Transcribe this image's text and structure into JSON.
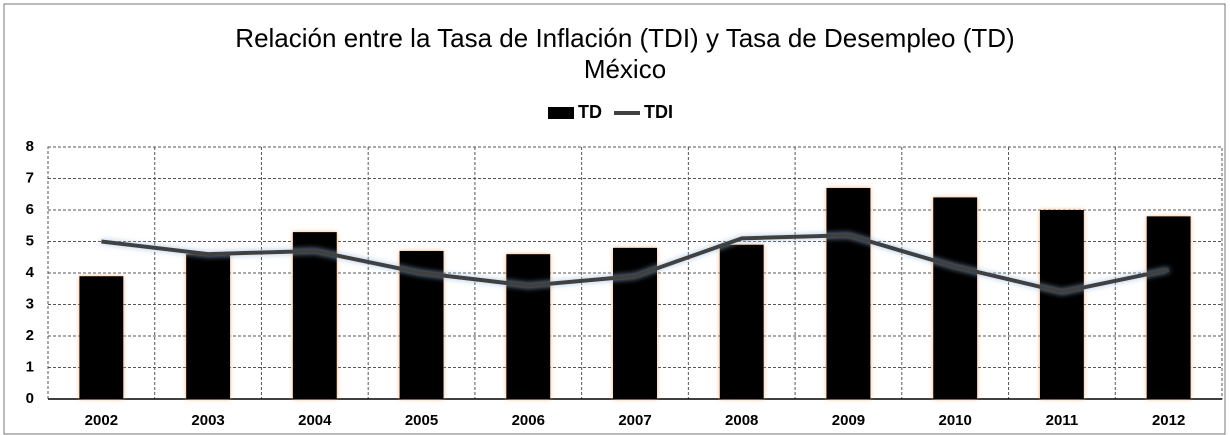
{
  "chart_data": {
    "type": "combo",
    "title": "Relación entre la Tasa de Inflación (TDI)  y Tasa de Desempleo (TD)",
    "subtitle": "México",
    "categories": [
      "2002",
      "2003",
      "2004",
      "2005",
      "2006",
      "2007",
      "2008",
      "2009",
      "2010",
      "2011",
      "2012"
    ],
    "series": [
      {
        "name": "TD",
        "type": "bar",
        "color": "#000000",
        "values": [
          3.9,
          4.6,
          5.3,
          4.7,
          4.6,
          4.8,
          4.9,
          6.7,
          6.4,
          6.0,
          5.8
        ]
      },
      {
        "name": "TDI",
        "type": "line",
        "color": "#404040",
        "values": [
          5.0,
          4.6,
          4.7,
          4.0,
          3.6,
          3.9,
          5.1,
          5.2,
          4.2,
          3.4,
          4.1
        ]
      }
    ],
    "ylim": [
      0,
      8
    ],
    "yticks": [
      0,
      1,
      2,
      3,
      4,
      5,
      6,
      7,
      8
    ],
    "grid": true,
    "legend": "top"
  }
}
